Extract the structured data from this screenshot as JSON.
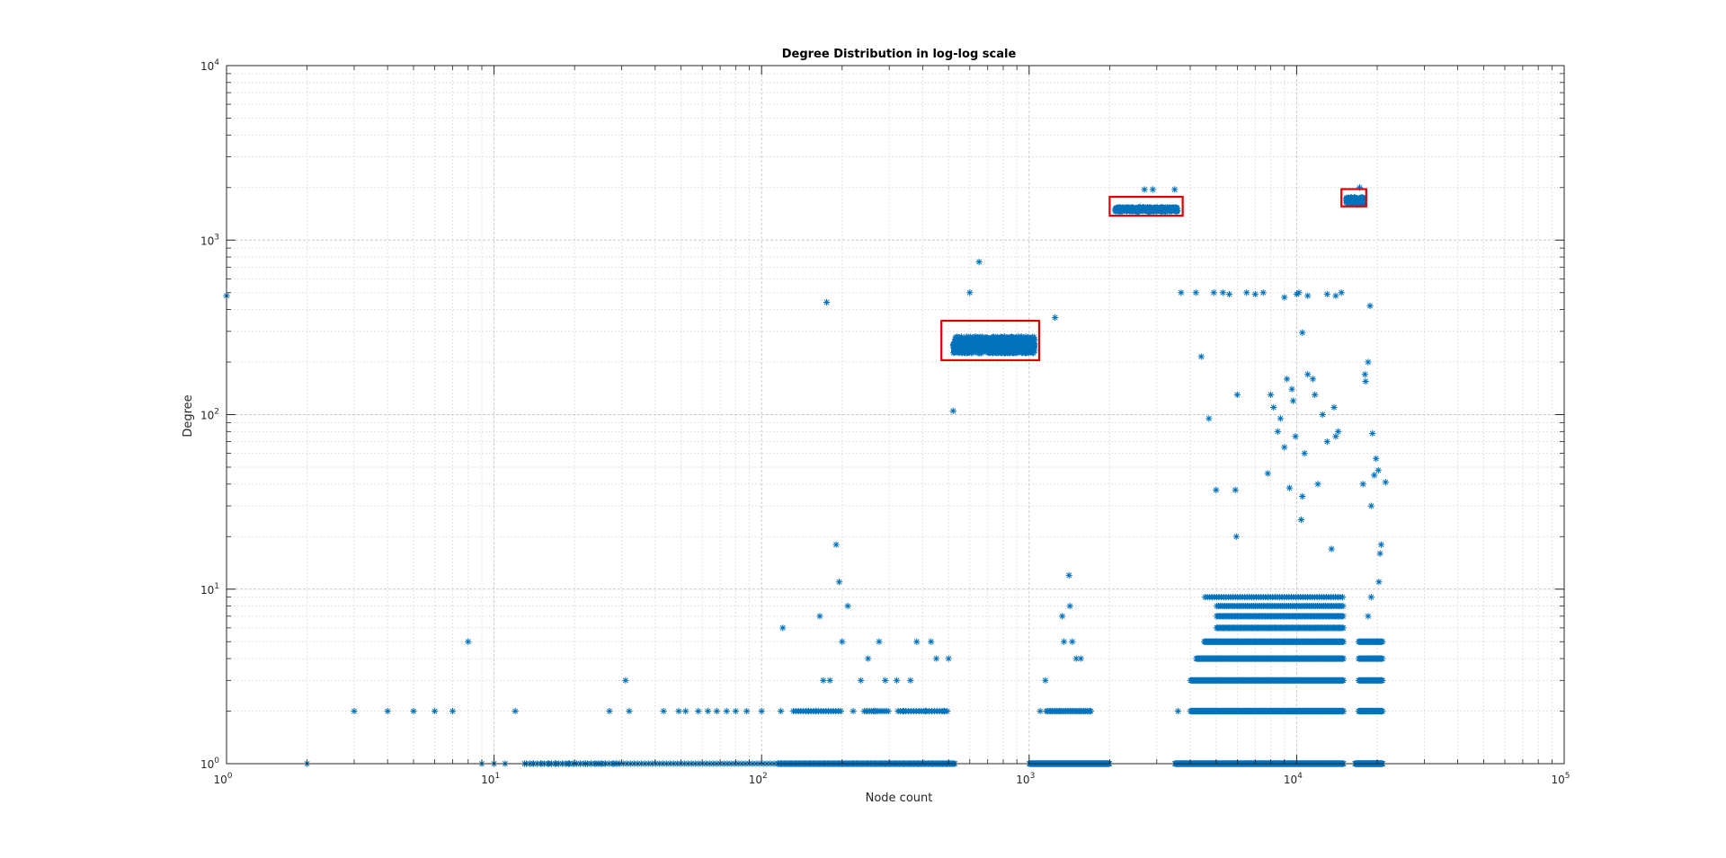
{
  "figure": {
    "background": "#ffffff"
  },
  "chart_data": {
    "type": "scatter",
    "title": "Degree Distribution in log-log scale",
    "xlabel": "Node count",
    "ylabel": "Degree",
    "xscale": "log",
    "yscale": "log",
    "xlim": [
      1,
      100000
    ],
    "ylim": [
      1,
      10000
    ],
    "grid": true,
    "minor_grid": true,
    "legend": "none",
    "marker": "*",
    "marker_color": "#0072BD",
    "highlight_color": "#e00000",
    "x_ticks": [
      {
        "base": "10",
        "exp": "0"
      },
      {
        "base": "10",
        "exp": "1"
      },
      {
        "base": "10",
        "exp": "2"
      },
      {
        "base": "10",
        "exp": "3"
      },
      {
        "base": "10",
        "exp": "4"
      },
      {
        "base": "10",
        "exp": "5"
      }
    ],
    "y_ticks": [
      {
        "base": "10",
        "exp": "0"
      },
      {
        "base": "10",
        "exp": "1"
      },
      {
        "base": "10",
        "exp": "2"
      },
      {
        "base": "10",
        "exp": "3"
      },
      {
        "base": "10",
        "exp": "4"
      }
    ],
    "points": [
      [
        1,
        480
      ],
      [
        2,
        1
      ],
      [
        3,
        2
      ],
      [
        4,
        2
      ],
      [
        5,
        2
      ],
      [
        6,
        2
      ],
      [
        7,
        2
      ],
      [
        8,
        5
      ],
      [
        9,
        1
      ],
      [
        10,
        1
      ],
      [
        11,
        1
      ],
      [
        12,
        2
      ],
      [
        13,
        1
      ],
      [
        14,
        1
      ],
      [
        15,
        1
      ],
      [
        16,
        1
      ],
      [
        17,
        1
      ],
      [
        18,
        1
      ],
      [
        19,
        1
      ],
      [
        20,
        1
      ],
      [
        21,
        1
      ],
      [
        22,
        1
      ],
      [
        23,
        1
      ],
      [
        24,
        1
      ],
      [
        25,
        1
      ],
      [
        26,
        1
      ],
      [
        27,
        2
      ],
      [
        28,
        1
      ],
      [
        29,
        1
      ],
      [
        31,
        3
      ],
      [
        32,
        2
      ],
      [
        43,
        2
      ],
      [
        49,
        2
      ],
      [
        52,
        2
      ],
      [
        58,
        2
      ],
      [
        63,
        2
      ],
      [
        68,
        2
      ],
      [
        74,
        2
      ],
      [
        80,
        2
      ],
      [
        88,
        2
      ],
      [
        100,
        2
      ],
      [
        118,
        2
      ],
      [
        120,
        6
      ],
      [
        150,
        2
      ],
      [
        160,
        2
      ],
      [
        165,
        7
      ],
      [
        170,
        3
      ],
      [
        175,
        440
      ],
      [
        180,
        3
      ],
      [
        190,
        18
      ],
      [
        195,
        11
      ],
      [
        200,
        5
      ],
      [
        210,
        8
      ],
      [
        220,
        2
      ],
      [
        235,
        3
      ],
      [
        250,
        4
      ],
      [
        265,
        2
      ],
      [
        275,
        5
      ],
      [
        290,
        3
      ],
      [
        320,
        3
      ],
      [
        340,
        2
      ],
      [
        360,
        3
      ],
      [
        380,
        5
      ],
      [
        410,
        2
      ],
      [
        430,
        5
      ],
      [
        450,
        4
      ],
      [
        480,
        2
      ],
      [
        500,
        4
      ],
      [
        520,
        105
      ],
      [
        600,
        500
      ],
      [
        650,
        750
      ],
      [
        1250,
        360
      ],
      [
        1410,
        12
      ],
      [
        1330,
        7
      ],
      [
        1350,
        5
      ],
      [
        1420,
        8
      ],
      [
        1450,
        5
      ],
      [
        1500,
        4
      ],
      [
        1560,
        4
      ],
      [
        1150,
        3
      ],
      [
        1100,
        2
      ],
      [
        1300,
        2
      ],
      [
        1700,
        2
      ],
      [
        2700,
        1950
      ],
      [
        2900,
        1950
      ],
      [
        3500,
        1950
      ],
      [
        2600,
        1550
      ],
      [
        3600,
        2
      ],
      [
        3700,
        500
      ],
      [
        4200,
        500
      ],
      [
        4400,
        215
      ],
      [
        4700,
        95
      ],
      [
        4900,
        500
      ],
      [
        5000,
        37
      ],
      [
        5300,
        500
      ],
      [
        5600,
        490
      ],
      [
        5900,
        37
      ],
      [
        5950,
        20
      ],
      [
        6000,
        130
      ],
      [
        6500,
        500
      ],
      [
        7000,
        490
      ],
      [
        7500,
        500
      ],
      [
        7800,
        46
      ],
      [
        8000,
        130
      ],
      [
        8200,
        110
      ],
      [
        8500,
        80
      ],
      [
        8700,
        95
      ],
      [
        9000,
        65
      ],
      [
        9200,
        160
      ],
      [
        9400,
        38
      ],
      [
        9600,
        140
      ],
      [
        9700,
        120
      ],
      [
        9900,
        75
      ],
      [
        10200,
        500
      ],
      [
        10400,
        25
      ],
      [
        10500,
        34
      ],
      [
        10700,
        60
      ],
      [
        11000,
        170
      ],
      [
        11500,
        160
      ],
      [
        11700,
        130
      ],
      [
        12000,
        40
      ],
      [
        12500,
        100
      ],
      [
        13000,
        70
      ],
      [
        13500,
        17
      ],
      [
        13800,
        110
      ],
      [
        14000,
        75
      ],
      [
        14300,
        80
      ],
      [
        14700,
        500
      ],
      [
        14000,
        480
      ],
      [
        13000,
        490
      ],
      [
        9000,
        470
      ],
      [
        10000,
        490
      ],
      [
        11000,
        480
      ],
      [
        10500,
        295
      ],
      [
        15500,
        1700
      ],
      [
        17200,
        2000
      ],
      [
        17700,
        40
      ],
      [
        18000,
        170
      ],
      [
        18100,
        155
      ],
      [
        18500,
        200
      ],
      [
        18800,
        420
      ],
      [
        19000,
        30
      ],
      [
        19200,
        78
      ],
      [
        19500,
        45
      ],
      [
        19800,
        56
      ],
      [
        20200,
        48
      ],
      [
        20500,
        16
      ],
      [
        20700,
        18
      ],
      [
        21500,
        41
      ],
      [
        19000,
        9
      ],
      [
        20300,
        11
      ],
      [
        18500,
        7
      ]
    ],
    "dense_bands": [
      {
        "x_min": 13,
        "x_max": 530,
        "y": 1,
        "n": 120
      },
      {
        "x_min": 115,
        "x_max": 530,
        "y": 1,
        "n": 160
      },
      {
        "x_min": 1000,
        "x_max": 2000,
        "y": 1,
        "n": 220
      },
      {
        "x_min": 3500,
        "x_max": 15000,
        "y": 1,
        "n": 420
      },
      {
        "x_min": 16500,
        "x_max": 21000,
        "y": 1,
        "n": 120
      },
      {
        "x_min": 130,
        "x_max": 200,
        "y": 2,
        "n": 20
      },
      {
        "x_min": 240,
        "x_max": 300,
        "y": 2,
        "n": 14
      },
      {
        "x_min": 320,
        "x_max": 500,
        "y": 2,
        "n": 20
      },
      {
        "x_min": 1150,
        "x_max": 1700,
        "y": 2,
        "n": 30
      },
      {
        "x_min": 4000,
        "x_max": 15000,
        "y": 2,
        "n": 280
      },
      {
        "x_min": 17000,
        "x_max": 21000,
        "y": 2,
        "n": 40
      },
      {
        "x_min": 4000,
        "x_max": 15000,
        "y": 3,
        "n": 200
      },
      {
        "x_min": 17000,
        "x_max": 21000,
        "y": 3,
        "n": 30
      },
      {
        "x_min": 4200,
        "x_max": 15000,
        "y": 4,
        "n": 200
      },
      {
        "x_min": 17000,
        "x_max": 21000,
        "y": 4,
        "n": 30
      },
      {
        "x_min": 4500,
        "x_max": 15000,
        "y": 5,
        "n": 180
      },
      {
        "x_min": 17000,
        "x_max": 21000,
        "y": 5,
        "n": 30
      },
      {
        "x_min": 5000,
        "x_max": 15000,
        "y": 6,
        "n": 120
      },
      {
        "x_min": 5000,
        "x_max": 15000,
        "y": 7,
        "n": 100
      },
      {
        "x_min": 5000,
        "x_max": 15000,
        "y": 8,
        "n": 80
      },
      {
        "x_min": 4500,
        "x_max": 15000,
        "y": 9,
        "n": 60
      }
    ],
    "dense_clusters": [
      {
        "x_min": 520,
        "x_max": 1050,
        "y_min": 225,
        "y_max": 280,
        "n": 800
      },
      {
        "x_min": 2100,
        "x_max": 3600,
        "y_min": 1460,
        "y_max": 1540,
        "n": 400
      },
      {
        "x_min": 15300,
        "x_max": 17800,
        "y_min": 1600,
        "y_max": 1760,
        "n": 150
      }
    ],
    "highlight_boxes": [
      {
        "x_min": 470,
        "x_max": 1090,
        "y_min": 205,
        "y_max": 345
      },
      {
        "x_min": 2000,
        "x_max": 3750,
        "y_min": 1380,
        "y_max": 1770
      },
      {
        "x_min": 14700,
        "x_max": 18200,
        "y_min": 1560,
        "y_max": 1960
      }
    ]
  }
}
